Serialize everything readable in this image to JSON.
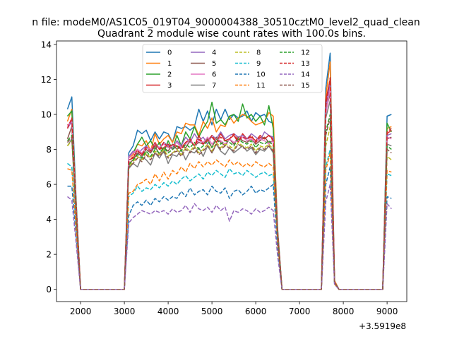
{
  "chart_data": {
    "type": "line",
    "suptitle": "n file: modeM0/AS1C05_019T04_9000004388_30510cztM0_level2_quad_clean",
    "title": "Quadrant 2 module wise count rates with 100.0s bins.",
    "xlabel": "",
    "ylabel": "",
    "x_offset_label": "+3.5919e8",
    "xlim": [
      1450,
      9450
    ],
    "ylim": [
      -0.7,
      14.2
    ],
    "xticks": [
      2000,
      3000,
      4000,
      5000,
      6000,
      7000,
      8000,
      9000
    ],
    "yticks": [
      0,
      2,
      4,
      6,
      8,
      10,
      12,
      14
    ],
    "grid": false,
    "legend_position": "top-center",
    "legend_columns": 4,
    "x": [
      1700,
      1800,
      1900,
      2000,
      3000,
      3100,
      3200,
      3300,
      3400,
      3500,
      3600,
      3700,
      3800,
      3900,
      4000,
      4100,
      4200,
      4300,
      4400,
      4500,
      4600,
      4700,
      4800,
      4900,
      5000,
      5100,
      5200,
      5300,
      5400,
      5500,
      5600,
      5700,
      5800,
      5900,
      6000,
      6100,
      6200,
      6300,
      6400,
      6500,
      6600,
      7500,
      7600,
      7700,
      7800,
      7900,
      8900,
      9000,
      9100
    ],
    "series": [
      {
        "name": "0",
        "color": "#1f77b4",
        "dashed": false,
        "values": [
          10.3,
          11.0,
          5.0,
          0,
          0,
          7.8,
          8.2,
          9.1,
          8.9,
          9.1,
          8.5,
          9.0,
          8.6,
          9.0,
          8.9,
          8.4,
          9.3,
          9.2,
          9.3,
          9.1,
          9.3,
          10.3,
          9.6,
          10.2,
          9.4,
          10.3,
          9.7,
          10.3,
          9.7,
          10.0,
          9.8,
          9.9,
          10.2,
          9.6,
          10.1,
          9.9,
          10.0,
          9.6,
          9.5,
          3.5,
          0,
          0,
          11.5,
          13.5,
          0.5,
          0,
          0,
          9.9,
          10.0
        ]
      },
      {
        "name": "1",
        "color": "#ff7f0e",
        "dashed": false,
        "values": [
          9.6,
          10.3,
          4.8,
          0,
          0,
          7.5,
          7.7,
          8.3,
          8.2,
          8.5,
          7.9,
          8.9,
          8.3,
          8.6,
          8.8,
          8.4,
          9.0,
          8.9,
          9.5,
          9.4,
          9.4,
          8.8,
          9.6,
          9.2,
          9.8,
          9.0,
          9.4,
          9.3,
          9.9,
          9.5,
          9.8,
          10.0,
          9.9,
          9.6,
          9.4,
          9.5,
          9.6,
          10.1,
          9.9,
          3.4,
          0,
          0,
          11.0,
          13.0,
          0.5,
          0,
          0,
          9.2,
          9.3
        ]
      },
      {
        "name": "2",
        "color": "#2ca02c",
        "dashed": false,
        "values": [
          9.9,
          10.2,
          4.9,
          0,
          0,
          7.6,
          7.8,
          8.3,
          8.7,
          8.2,
          8.5,
          8.0,
          8.4,
          7.8,
          8.5,
          8.0,
          8.8,
          8.2,
          9.0,
          8.6,
          9.3,
          8.7,
          9.2,
          9.6,
          10.7,
          9.5,
          9.7,
          9.4,
          9.9,
          10.0,
          9.6,
          10.6,
          9.8,
          10.0,
          9.6,
          9.9,
          9.4,
          10.5,
          9.2,
          3.3,
          0,
          0,
          10.5,
          11.6,
          0.4,
          0,
          0,
          9.5,
          9.0
        ]
      },
      {
        "name": "3",
        "color": "#d62728",
        "dashed": false,
        "values": [
          9.4,
          9.5,
          4.6,
          0,
          0,
          7.4,
          7.5,
          8.0,
          7.7,
          8.2,
          7.9,
          8.4,
          8.0,
          8.1,
          8.3,
          8.0,
          8.2,
          8.1,
          8.4,
          8.5,
          8.2,
          8.8,
          8.3,
          8.6,
          8.7,
          8.4,
          8.9,
          8.5,
          8.6,
          8.8,
          8.4,
          8.9,
          8.6,
          8.7,
          8.5,
          8.8,
          8.6,
          8.8,
          8.6,
          3.2,
          0,
          0,
          10.8,
          12.0,
          0.4,
          0,
          0,
          8.9,
          9.1
        ]
      },
      {
        "name": "4",
        "color": "#9467bd",
        "dashed": false,
        "values": [
          9.2,
          9.6,
          4.5,
          0,
          0,
          7.6,
          7.9,
          7.7,
          8.0,
          8.2,
          7.9,
          8.3,
          8.1,
          8.4,
          8.2,
          8.0,
          8.5,
          8.2,
          8.7,
          8.4,
          8.9,
          8.5,
          8.7,
          8.3,
          8.8,
          8.6,
          9.0,
          8.6,
          8.8,
          8.9,
          8.7,
          8.8,
          8.6,
          8.9,
          8.7,
          8.5,
          9.0,
          8.8,
          8.7,
          3.2,
          0,
          0,
          10.4,
          11.8,
          0.4,
          0,
          0,
          8.8,
          8.9
        ]
      },
      {
        "name": "5",
        "color": "#8c564b",
        "dashed": false,
        "values": [
          8.6,
          9.3,
          4.4,
          0,
          0,
          7.2,
          7.4,
          7.8,
          7.6,
          8.0,
          7.8,
          8.2,
          7.7,
          8.1,
          7.9,
          8.3,
          8.0,
          8.2,
          8.1,
          8.5,
          8.2,
          8.4,
          8.3,
          8.6,
          8.1,
          8.7,
          8.4,
          8.2,
          8.6,
          8.3,
          8.7,
          8.5,
          8.4,
          8.6,
          8.3,
          8.5,
          8.7,
          8.4,
          8.5,
          3.1,
          0,
          0,
          10.2,
          11.2,
          0.4,
          0,
          0,
          8.6,
          8.7
        ]
      },
      {
        "name": "6",
        "color": "#e377c2",
        "dashed": false,
        "values": [
          9.3,
          9.7,
          4.6,
          0,
          0,
          7.5,
          7.8,
          8.0,
          7.8,
          8.1,
          8.0,
          8.3,
          8.1,
          8.3,
          8.1,
          8.2,
          8.4,
          8.1,
          8.3,
          8.6,
          8.2,
          8.5,
          8.4,
          8.7,
          8.3,
          8.6,
          8.5,
          8.3,
          8.6,
          8.4,
          8.5,
          8.7,
          8.5,
          8.6,
          8.4,
          8.6,
          8.5,
          8.3,
          8.5,
          3.2,
          0,
          0,
          10.0,
          11.5,
          0.4,
          0,
          0,
          8.7,
          8.6
        ]
      },
      {
        "name": "7",
        "color": "#7f7f7f",
        "dashed": false,
        "values": [
          8.2,
          8.6,
          4.2,
          0,
          0,
          6.9,
          7.2,
          7.0,
          7.6,
          7.4,
          7.1,
          7.8,
          7.5,
          7.9,
          7.2,
          7.7,
          7.6,
          8.0,
          7.4,
          7.9,
          7.8,
          8.1,
          7.6,
          8.2,
          7.8,
          8.3,
          7.9,
          7.7,
          8.1,
          7.8,
          8.0,
          8.2,
          7.9,
          8.1,
          7.7,
          8.0,
          7.9,
          8.2,
          7.8,
          3.0,
          0,
          0,
          9.8,
          10.8,
          0.4,
          0,
          0,
          8.3,
          8.2
        ]
      },
      {
        "name": "8",
        "color": "#bcbd22",
        "dashed": true,
        "values": [
          8.2,
          8.5,
          4.3,
          0,
          0,
          7.0,
          7.3,
          7.6,
          7.4,
          7.8,
          7.5,
          7.9,
          7.7,
          8.0,
          7.6,
          7.8,
          8.0,
          7.7,
          8.1,
          7.9,
          8.2,
          7.8,
          8.0,
          8.3,
          7.9,
          8.4,
          8.1,
          8.3,
          8.2,
          8.0,
          8.4,
          8.2,
          8.1,
          8.3,
          7.9,
          8.2,
          8.1,
          8.3,
          8.0,
          3.0,
          0,
          0,
          8.2,
          9.3,
          0.4,
          0,
          0,
          7.6,
          7.4
        ]
      },
      {
        "name": "9",
        "color": "#17becf",
        "dashed": true,
        "values": [
          7.2,
          7.0,
          3.5,
          0,
          0,
          5.3,
          5.5,
          5.9,
          5.6,
          5.8,
          5.7,
          6.0,
          5.8,
          6.1,
          5.9,
          6.2,
          6.0,
          6.3,
          6.5,
          6.2,
          6.4,
          6.6,
          6.3,
          6.7,
          6.5,
          6.8,
          6.6,
          6.4,
          6.9,
          6.6,
          6.7,
          6.5,
          6.8,
          6.6,
          6.4,
          6.6,
          6.7,
          6.5,
          6.6,
          2.6,
          0,
          0,
          7.0,
          8.0,
          0.3,
          0,
          0,
          6.6,
          6.5
        ]
      },
      {
        "name": "10",
        "color": "#1f77b4",
        "dashed": true,
        "values": [
          5.9,
          5.9,
          3.0,
          0,
          0,
          4.2,
          4.8,
          5.0,
          4.8,
          5.1,
          4.8,
          5.2,
          5.0,
          5.3,
          5.1,
          5.3,
          5.2,
          5.6,
          5.3,
          5.8,
          5.4,
          5.6,
          5.7,
          5.4,
          5.9,
          5.6,
          5.5,
          5.8,
          5.2,
          5.6,
          5.7,
          5.4,
          5.6,
          5.9,
          5.5,
          5.7,
          5.6,
          5.8,
          6.0,
          2.3,
          0,
          0,
          6.0,
          7.0,
          0.3,
          0,
          0,
          5.3,
          5.2
        ]
      },
      {
        "name": "11",
        "color": "#ff7f0e",
        "dashed": true,
        "values": [
          6.9,
          6.8,
          3.4,
          0,
          0,
          5.5,
          5.6,
          6.0,
          6.1,
          6.3,
          6.0,
          6.6,
          6.2,
          6.7,
          6.3,
          6.8,
          6.6,
          7.0,
          6.7,
          7.2,
          6.9,
          7.3,
          7.0,
          7.3,
          7.1,
          7.4,
          7.2,
          7.0,
          7.4,
          7.1,
          7.3,
          7.0,
          7.2,
          7.0,
          7.3,
          7.1,
          7.0,
          7.2,
          7.0,
          2.7,
          0,
          0,
          6.8,
          7.8,
          0.3,
          0,
          0,
          6.8,
          6.7
        ]
      },
      {
        "name": "12",
        "color": "#2ca02c",
        "dashed": true,
        "values": [
          8.5,
          8.8,
          4.3,
          0,
          0,
          7.1,
          7.4,
          7.7,
          7.5,
          7.9,
          7.6,
          8.0,
          7.8,
          8.1,
          7.8,
          8.0,
          8.2,
          7.9,
          8.3,
          8.1,
          8.4,
          8.0,
          8.2,
          8.5,
          8.1,
          8.6,
          8.3,
          8.5,
          8.4,
          8.2,
          8.6,
          8.4,
          8.3,
          8.5,
          8.1,
          8.4,
          8.3,
          8.5,
          8.2,
          3.1,
          0,
          0,
          9.0,
          10.0,
          0.4,
          0,
          0,
          8.2,
          8.0
        ]
      },
      {
        "name": "13",
        "color": "#d62728",
        "dashed": true,
        "values": [
          9.2,
          9.8,
          4.7,
          0,
          0,
          7.3,
          7.6,
          7.9,
          7.7,
          8.1,
          7.9,
          8.3,
          8.0,
          8.4,
          8.1,
          8.3,
          8.2,
          8.0,
          8.4,
          8.6,
          8.2,
          8.6,
          8.3,
          8.5,
          8.8,
          8.4,
          8.7,
          8.5,
          8.6,
          8.9,
          8.5,
          8.7,
          8.6,
          8.8,
          8.4,
          8.7,
          8.6,
          8.8,
          8.5,
          3.2,
          0,
          0,
          10.5,
          12.1,
          0.4,
          0,
          0,
          9.0,
          9.2
        ]
      },
      {
        "name": "14",
        "color": "#9467bd",
        "dashed": true,
        "values": [
          5.3,
          5.1,
          2.6,
          0,
          0,
          3.8,
          4.1,
          4.3,
          4.5,
          4.4,
          4.3,
          4.5,
          4.4,
          4.5,
          4.3,
          4.6,
          4.4,
          4.5,
          4.8,
          4.4,
          4.9,
          4.6,
          4.5,
          4.7,
          4.4,
          4.8,
          4.5,
          4.7,
          3.9,
          4.5,
          4.4,
          4.6,
          4.5,
          4.3,
          4.6,
          4.4,
          4.5,
          4.7,
          4.5,
          1.9,
          0,
          0,
          5.0,
          6.0,
          0.3,
          0,
          0,
          4.9,
          4.6
        ]
      },
      {
        "name": "15",
        "color": "#8c564b",
        "dashed": true,
        "values": [
          8.4,
          8.7,
          4.2,
          0,
          0,
          7.0,
          7.2,
          7.5,
          7.3,
          7.7,
          7.4,
          7.8,
          7.6,
          7.9,
          7.5,
          7.8,
          7.9,
          7.6,
          8.0,
          7.8,
          8.1,
          7.7,
          7.9,
          8.2,
          7.8,
          8.3,
          8.0,
          8.2,
          8.1,
          7.9,
          8.3,
          8.1,
          8.0,
          8.2,
          7.8,
          8.1,
          8.0,
          8.2,
          7.9,
          3.0,
          0,
          0,
          8.8,
          9.8,
          0.4,
          0,
          0,
          8.0,
          7.8
        ]
      }
    ]
  }
}
